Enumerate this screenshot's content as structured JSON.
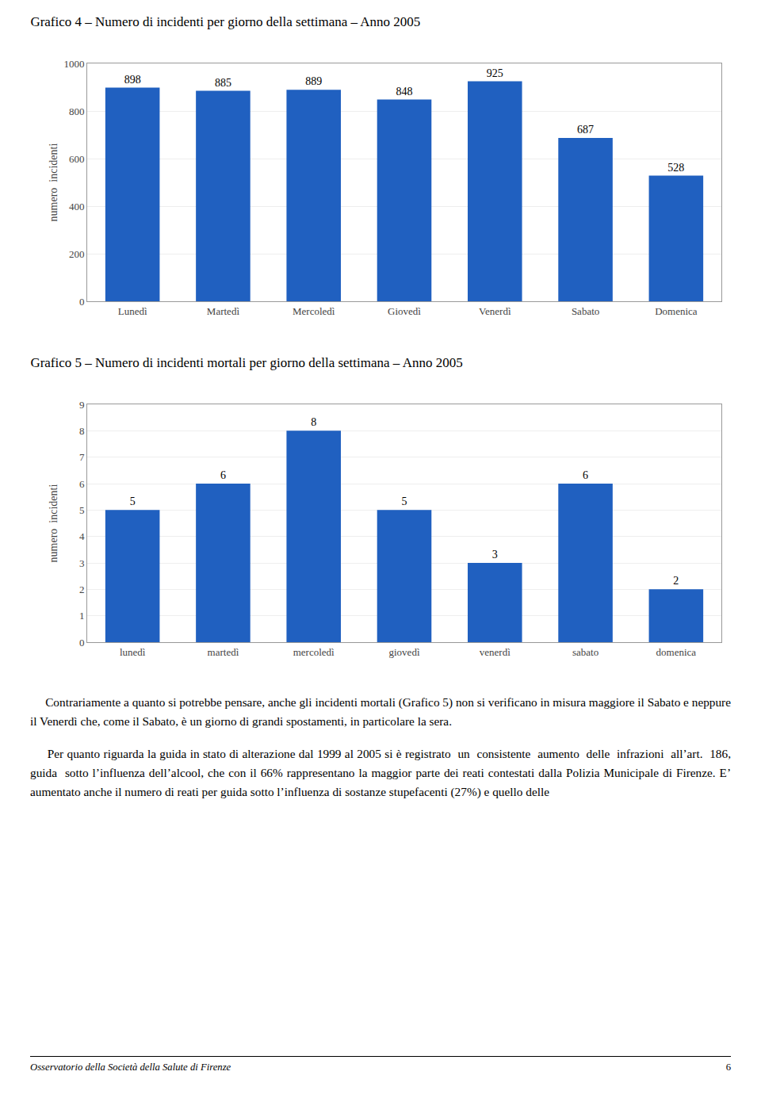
{
  "chart_data": [
    {
      "type": "bar",
      "title": "Grafico 4 – Numero di incidenti per giorno della settimana – Anno 2005",
      "categories": [
        "Lunedì",
        "Martedì",
        "Mercoledì",
        "Giovedì",
        "Venerdì",
        "Sabato",
        "Domenica"
      ],
      "values": [
        898,
        885,
        889,
        848,
        925,
        687,
        528
      ],
      "ylabel": "numero  incidenti",
      "color": "#2060c0",
      "ylim": [
        0,
        1000
      ],
      "yticks": [
        0,
        200,
        400,
        600,
        800,
        1000
      ],
      "grid": true,
      "data_labels": true
    },
    {
      "type": "bar",
      "title": "Grafico 5 – Numero di incidenti mortali per giorno della settimana – Anno 2005",
      "categories": [
        "lunedì",
        "martedì",
        "mercoledì",
        "giovedì",
        "venerdì",
        "sabato",
        "domenica"
      ],
      "values": [
        5,
        6,
        8,
        5,
        3,
        6,
        2
      ],
      "ylabel": "numero  incidenti",
      "color": "#2060c0",
      "ylim": [
        0,
        9
      ],
      "yticks": [
        0,
        1,
        2,
        3,
        4,
        5,
        6,
        7,
        8,
        9
      ],
      "grid": true,
      "data_labels": true
    }
  ],
  "paragraphs": [
    "     Contrariamente a quanto si potrebbe pensare, anche gli incidenti mortali (Grafico 5) non si verificano in misura maggiore il Sabato e neppure il Venerdì che, come il Sabato, è un giorno di grandi spostamenti, in particolare la sera.",
    "     Per quanto riguarda la guida in stato di alterazione dal 1999 al 2005 si è registrato  un  consistente  aumento  delle  infrazioni  all’art.  186,  guida  sotto l’influenza dell’alcool, che con il 66% rappresentano la maggior parte dei reati contestati dalla Polizia Municipale di Firenze. E’ aumentato anche il numero di reati per guida sotto l’influenza di sostanze stupefacenti (27%) e quello delle"
  ],
  "footer": "Osservatorio della Società della Salute di Firenze",
  "page_number": "6"
}
